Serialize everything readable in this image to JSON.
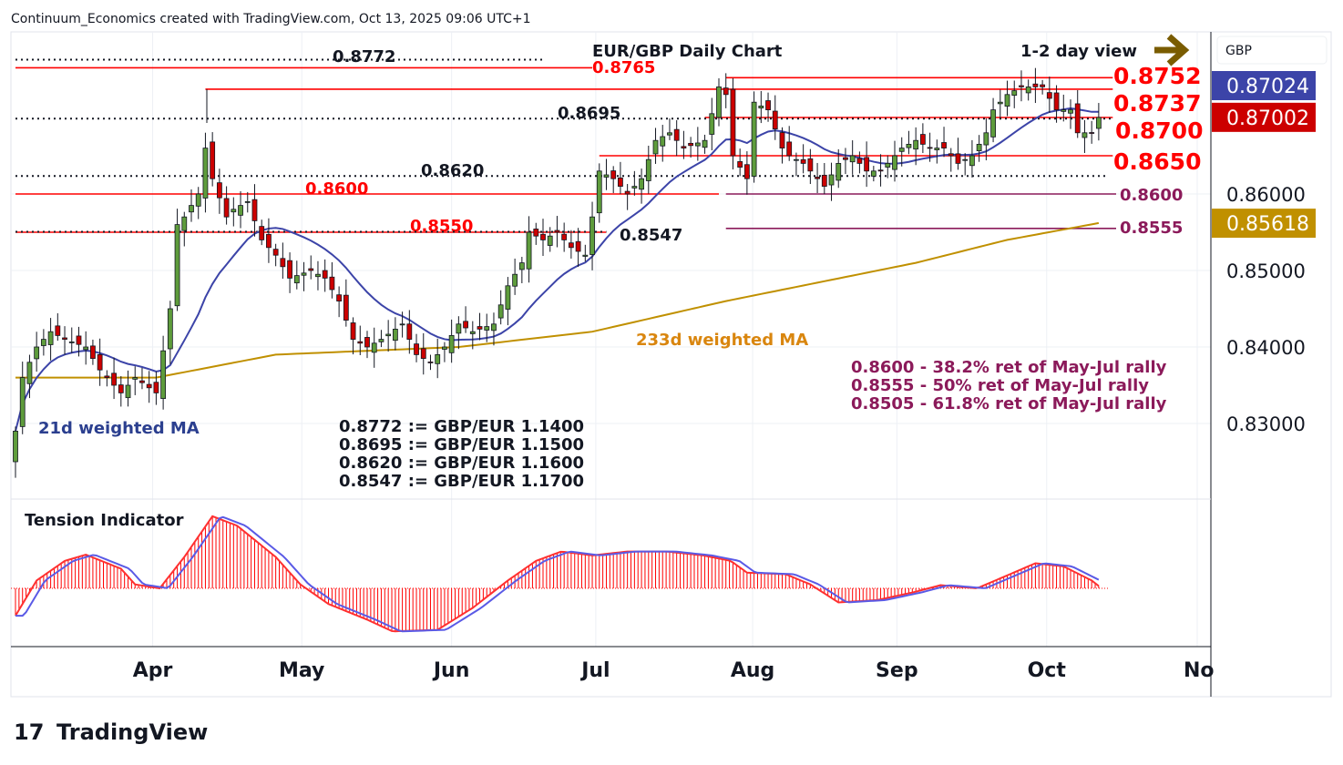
{
  "header": {
    "attribution": "Continuum_Economics created with TradingView.com, Oct 13, 2025 09:06 UTC+1"
  },
  "footer": {
    "logo_text": "TradingView"
  },
  "chart_data": {
    "type": "candlestick",
    "title": "EUR/GBP Daily Chart",
    "subtitle": "1-2 day view",
    "currency": "GBP",
    "ylim": [
      0.8245,
      0.8785
    ],
    "yticks": [
      "0.86000",
      "0.85000",
      "0.84000",
      "0.83000"
    ],
    "ytick_values": [
      0.86,
      0.85,
      0.84,
      0.83
    ],
    "xticks": [
      {
        "label": "Apr",
        "day": 19.5
      },
      {
        "label": "May",
        "day": 40.7
      },
      {
        "label": "Jun",
        "day": 62.0
      },
      {
        "label": "Jul",
        "day": 82.5
      },
      {
        "label": "Aug",
        "day": 104.8
      },
      {
        "label": "Sep",
        "day": 125.3
      },
      {
        "label": "Oct",
        "day": 146.6
      },
      {
        "label": "No",
        "day": 168.0
      }
    ],
    "badges": [
      {
        "label": "0.87024",
        "value": 0.87024,
        "color": "#3c44a8"
      },
      {
        "label": "0.87002",
        "value": 0.87002,
        "color": "#cc0000"
      },
      {
        "label": "0.85618",
        "value": 0.85618,
        "color": "#c09000"
      }
    ],
    "close_path": [
      [
        0,
        0.829
      ],
      [
        1,
        0.836
      ],
      [
        3,
        0.84
      ],
      [
        5,
        0.842
      ],
      [
        7,
        0.841
      ],
      [
        10,
        0.84
      ],
      [
        12,
        0.837
      ],
      [
        15,
        0.834
      ],
      [
        17,
        0.836
      ],
      [
        20,
        0.834
      ],
      [
        22,
        0.845
      ],
      [
        23,
        0.856
      ],
      [
        24,
        0.857
      ],
      [
        26,
        0.86
      ],
      [
        27,
        0.866
      ],
      [
        28,
        0.862
      ],
      [
        30,
        0.857
      ],
      [
        31,
        0.858
      ],
      [
        33,
        0.859
      ],
      [
        35,
        0.854
      ],
      [
        37,
        0.852
      ],
      [
        39,
        0.849
      ],
      [
        42,
        0.85
      ],
      [
        44,
        0.849
      ],
      [
        46,
        0.846
      ],
      [
        48,
        0.841
      ],
      [
        50,
        0.84
      ],
      [
        52,
        0.841
      ],
      [
        55,
        0.843
      ],
      [
        57,
        0.839
      ],
      [
        59,
        0.838
      ],
      [
        61,
        0.84
      ],
      [
        63,
        0.843
      ],
      [
        65,
        0.842
      ],
      [
        68,
        0.843
      ],
      [
        70,
        0.848
      ],
      [
        72,
        0.851
      ],
      [
        73,
        0.855
      ],
      [
        75,
        0.854
      ],
      [
        77,
        0.855
      ],
      [
        79,
        0.853
      ],
      [
        81,
        0.852
      ],
      [
        82,
        0.857
      ],
      [
        83,
        0.863
      ],
      [
        85,
        0.862
      ],
      [
        87,
        0.86
      ],
      [
        89,
        0.862
      ],
      [
        91,
        0.867
      ],
      [
        93,
        0.868
      ],
      [
        95,
        0.866
      ],
      [
        98,
        0.867
      ],
      [
        100,
        0.874
      ],
      [
        101,
        0.873
      ],
      [
        102,
        0.865
      ],
      [
        104,
        0.862
      ],
      [
        105,
        0.872
      ],
      [
        107,
        0.871
      ],
      [
        109,
        0.866
      ],
      [
        110,
        0.865
      ],
      [
        112,
        0.864
      ],
      [
        115,
        0.861
      ],
      [
        117,
        0.864
      ],
      [
        119,
        0.865
      ],
      [
        121,
        0.863
      ],
      [
        123,
        0.863
      ],
      [
        126,
        0.866
      ],
      [
        128,
        0.867
      ],
      [
        130,
        0.866
      ],
      [
        132,
        0.866
      ],
      [
        134,
        0.864
      ],
      [
        136,
        0.865
      ],
      [
        138,
        0.868
      ],
      [
        139,
        0.871
      ],
      [
        141,
        0.873
      ],
      [
        143,
        0.874
      ],
      [
        146,
        0.874
      ],
      [
        148,
        0.871
      ],
      [
        150,
        0.871
      ],
      [
        151,
        0.868
      ],
      [
        153,
        0.868
      ],
      [
        154,
        0.87
      ]
    ],
    "ma233_path": [
      [
        0,
        0.836
      ],
      [
        20,
        0.836
      ],
      [
        37,
        0.839
      ],
      [
        63,
        0.84
      ],
      [
        82,
        0.842
      ],
      [
        101,
        0.846
      ],
      [
        128,
        0.851
      ],
      [
        141,
        0.854
      ],
      [
        154,
        0.8562
      ]
    ],
    "ma21_label": "21d weighted MA",
    "ma233_label": "233d weighted MA",
    "levels": [
      {
        "label": "0.8772",
        "value": 0.8772,
        "style": "dotted",
        "color": "#131722",
        "from": 0,
        "to": 75
      },
      {
        "label": "0.8765",
        "value": 0.8765,
        "style": "solid",
        "color": "#ff0000",
        "from": 0,
        "to": 82
      },
      {
        "label": "0.8752",
        "value": 0.8752,
        "style": "solid",
        "color": "#ff0000",
        "from": 101,
        "to": 156
      },
      {
        "label": "0.8737",
        "value": 0.8737,
        "style": "solid",
        "color": "#ff0000",
        "from": 27,
        "to": 156
      },
      {
        "label": "0.8700",
        "value": 0.87,
        "style": "solid",
        "color": "#ff0000",
        "from": 98,
        "to": 156
      },
      {
        "label": "0.8695",
        "value": 0.8695,
        "style": "dotted",
        "color": "#131722",
        "from": 0,
        "to": 156
      },
      {
        "label": "0.8650",
        "value": 0.865,
        "style": "solid",
        "color": "#ff0000",
        "from": 83,
        "to": 156
      },
      {
        "label": "0.8620",
        "value": 0.862,
        "style": "dotted",
        "color": "#131722",
        "from": 0,
        "to": 155
      },
      {
        "label": "0.8600",
        "value": 0.86,
        "style": "solid",
        "color": "#ff0000",
        "from": 0,
        "to": 100
      },
      {
        "label": "0.8600",
        "value": 0.86,
        "style": "solid",
        "color": "#8b1a5a",
        "from": 101,
        "to": 157
      },
      {
        "label": "0.8555",
        "value": 0.8555,
        "style": "solid",
        "color": "#8b1a5a",
        "from": 101,
        "to": 157
      },
      {
        "label": "0.8550",
        "value": 0.855,
        "style": "solid",
        "color": "#ff0000",
        "from": 0,
        "to": 84
      },
      {
        "label": "0.8547",
        "value": 0.8547,
        "style": "dotted",
        "color": "#131722",
        "from": 0,
        "to": 84
      }
    ],
    "fib_notes": [
      "0.8600 - 38.2% ret of May-Jul rally",
      "0.8555 - 50% ret of May-Jul rally",
      "0.8505 - 61.8% ret of May-Jul rally"
    ],
    "conversions": [
      "0.8772 := GBP/EUR 1.1400",
      "0.8695 := GBP/EUR 1.1500",
      "0.8620 := GBP/EUR 1.1600",
      "0.8547 := GBP/EUR 1.1700"
    ],
    "indicator": {
      "title": "Tension Indicator",
      "path": [
        [
          0,
          -0.35
        ],
        [
          3,
          0.1
        ],
        [
          7,
          0.35
        ],
        [
          10,
          0.43
        ],
        [
          15,
          0.25
        ],
        [
          17,
          0.05
        ],
        [
          20.5,
          0.0
        ],
        [
          24,
          0.4
        ],
        [
          28,
          0.92
        ],
        [
          31.5,
          0.8
        ],
        [
          37,
          0.4
        ],
        [
          40.5,
          0.05
        ],
        [
          44.5,
          -0.2
        ],
        [
          50,
          -0.4
        ],
        [
          53.6,
          -0.55
        ],
        [
          60,
          -0.53
        ],
        [
          65,
          -0.25
        ],
        [
          70,
          0.1
        ],
        [
          74,
          0.35
        ],
        [
          77.6,
          0.47
        ],
        [
          82,
          0.42
        ],
        [
          87,
          0.47
        ],
        [
          92.6,
          0.47
        ],
        [
          97.8,
          0.42
        ],
        [
          101.7,
          0.35
        ],
        [
          104,
          0.2
        ],
        [
          109.5,
          0.18
        ],
        [
          113,
          0.05
        ],
        [
          117,
          -0.18
        ],
        [
          122.5,
          -0.15
        ],
        [
          127.7,
          -0.05
        ],
        [
          131.5,
          0.04
        ],
        [
          136.7,
          0.0
        ],
        [
          140.6,
          0.15
        ],
        [
          145,
          0.32
        ],
        [
          149,
          0.28
        ],
        [
          153,
          0.1
        ],
        [
          154,
          0.03
        ]
      ]
    }
  }
}
